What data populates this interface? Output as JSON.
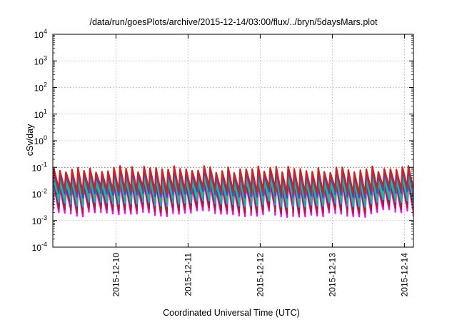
{
  "chart_data": {
    "type": "line",
    "title": "/data/run/goesPlots/archive/2015-12-14/03:00/flux/../bryn/5daysMars.plot",
    "xlabel": "Coordinated Universal Time (UTC)",
    "ylabel": "cSv/day",
    "yscale": "log",
    "ylim": [
      0.0001,
      10000
    ],
    "yticks": [
      {
        "value": 0.0001,
        "base": "10",
        "exp": "-4"
      },
      {
        "value": 0.001,
        "base": "10",
        "exp": "-3"
      },
      {
        "value": 0.01,
        "base": "10",
        "exp": "-2"
      },
      {
        "value": 0.1,
        "base": "10",
        "exp": "-1"
      },
      {
        "value": 1,
        "base": "10",
        "exp": "0"
      },
      {
        "value": 10,
        "base": "10",
        "exp": "1"
      },
      {
        "value": 100,
        "base": "10",
        "exp": "2"
      },
      {
        "value": 1000,
        "base": "10",
        "exp": "3"
      },
      {
        "value": 10000,
        "base": "10",
        "exp": "4"
      }
    ],
    "xlim": [
      "2015-12-09 03:00",
      "2015-12-14 03:00"
    ],
    "xticks": [
      "2015-12-10",
      "2015-12-11",
      "2015-12-12",
      "2015-12-13",
      "2015-12-14"
    ],
    "grid": true,
    "reference_level": 0.1,
    "series": [
      {
        "color": "#ff00ff",
        "low": 0.0025,
        "high": 0.022
      },
      {
        "color": "#a0222a",
        "low": 0.0034,
        "high": 0.028
      },
      {
        "color": "#00b8c8",
        "low": 0.006,
        "high": 0.038
      },
      {
        "color": "#3cb371",
        "low": 0.009,
        "high": 0.05
      },
      {
        "color": "#2a52e0",
        "low": 0.013,
        "high": 0.07
      },
      {
        "color": "#d02020",
        "low": 0.018,
        "high": 0.095
      }
    ],
    "cycle_days": 0.0833
  }
}
